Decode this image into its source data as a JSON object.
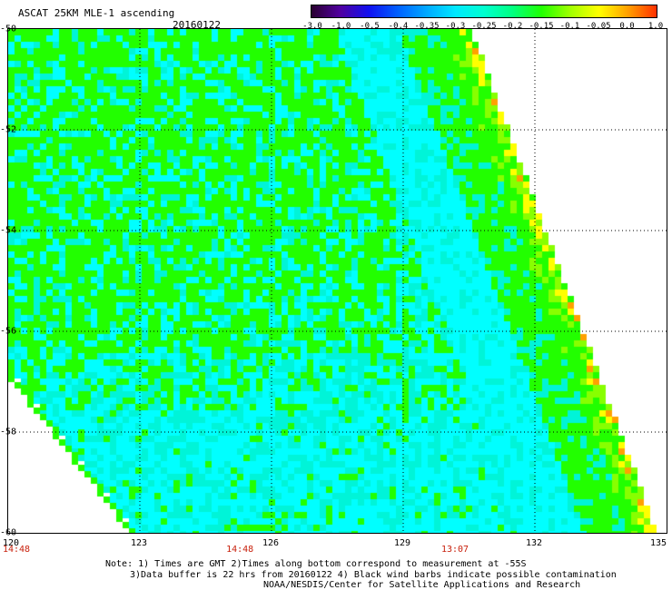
{
  "header": {
    "title": "ASCAT 25KM MLE-1 ascending",
    "date": "20160122"
  },
  "colorbar": {
    "labels": [
      "-3.0",
      "-1.0",
      "-0.5",
      "-0.4",
      "-0.35",
      "-0.3",
      "-0.25",
      "-0.2",
      "-0.15",
      "-0.1",
      "-0.05",
      "0.0",
      "1.0"
    ],
    "colors": [
      "#2a0030",
      "#5000a0",
      "#1010f0",
      "#0060ff",
      "#00a8ff",
      "#00e8ff",
      "#00ffd0",
      "#00ff80",
      "#20ff00",
      "#a0ff00",
      "#ffff00",
      "#ffa000",
      "#ff3000"
    ]
  },
  "map": {
    "lon_range": [
      120,
      135
    ],
    "lat_range": [
      -50,
      -60
    ],
    "lon_labels": [
      "120",
      "123",
      "126",
      "129",
      "132",
      "135"
    ],
    "lat_labels": [
      "-50",
      "-52",
      "-54",
      "-56",
      "-58",
      "-60"
    ],
    "grid": "dotted",
    "colors": {
      "cyan": "#00ffff",
      "aqua": "#00f4d8",
      "green": "#22ff00",
      "lime": "#88ff00",
      "yellow": "#ffff00",
      "orange": "#ffa000"
    }
  },
  "times": [
    {
      "label": "14:48",
      "lon": 120
    },
    {
      "label": "14:48",
      "lon": 125.3
    },
    {
      "label": "13:07",
      "lon": 130.2
    }
  ],
  "notes": {
    "line1": "Note: 1) Times are GMT 2)Times along bottom correspond to measurement at -55S",
    "line2": "3)Data buffer is 22 hrs from 20160122 4) Black wind barbs indicate possible contamination",
    "line3": "NOAA/NESDIS/Center for Satellite Applications and Research"
  }
}
